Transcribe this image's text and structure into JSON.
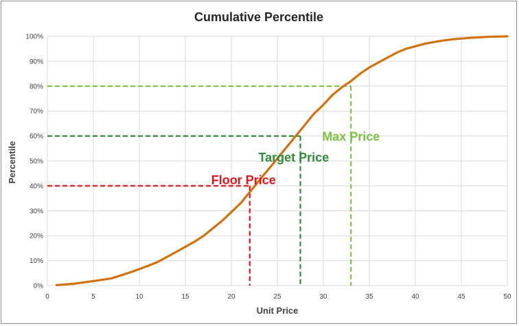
{
  "chart_data": {
    "type": "line",
    "title": "Cumulative Percentile",
    "xlabel": "Unit Price",
    "ylabel": "Percentile",
    "xlim": [
      0,
      50
    ],
    "ylim": [
      0,
      100
    ],
    "x_ticks": [
      "0",
      "5",
      "10",
      "15",
      "20",
      "25",
      "30",
      "35",
      "40",
      "45",
      "50"
    ],
    "y_ticks": [
      "0%",
      "10%",
      "20%",
      "30%",
      "40%",
      "50%",
      "60%",
      "70%",
      "80%",
      "90%",
      "100%"
    ],
    "grid": true,
    "series": [
      {
        "color": "#d4700a",
        "points": [
          [
            1,
            0.2
          ],
          [
            3,
            0.8
          ],
          [
            5,
            1.8
          ],
          [
            7,
            2.9
          ],
          [
            9,
            5.3
          ],
          [
            11,
            8
          ],
          [
            12,
            9.5
          ],
          [
            14,
            13.5
          ],
          [
            16,
            17.6
          ],
          [
            17,
            20
          ],
          [
            18,
            23
          ],
          [
            19,
            26
          ],
          [
            20,
            29.5
          ],
          [
            21,
            33
          ],
          [
            22,
            37.5
          ],
          [
            23,
            42
          ],
          [
            24,
            46.5
          ],
          [
            25,
            51
          ],
          [
            26,
            55.5
          ],
          [
            27,
            60
          ],
          [
            28,
            64.5
          ],
          [
            29,
            69
          ],
          [
            30,
            72.5
          ],
          [
            31,
            76.5
          ],
          [
            32,
            79.5
          ],
          [
            33,
            82
          ],
          [
            34,
            85
          ],
          [
            35,
            87.5
          ],
          [
            36,
            89.5
          ],
          [
            37,
            91.5
          ],
          [
            38,
            93.5
          ],
          [
            39,
            95
          ],
          [
            40,
            96
          ],
          [
            41,
            97
          ],
          [
            42,
            97.7
          ],
          [
            43,
            98.3
          ],
          [
            44,
            98.8
          ],
          [
            45,
            99.1
          ],
          [
            46,
            99.4
          ],
          [
            47,
            99.6
          ],
          [
            48,
            99.8
          ],
          [
            49,
            99.9
          ],
          [
            50,
            100
          ]
        ]
      }
    ],
    "annotations": [
      {
        "label": "Floor Price",
        "x": 22,
        "y": 40,
        "color": "#e8161c"
      },
      {
        "label": "Target Price",
        "x": 27.5,
        "y": 60,
        "color": "#2e8b38"
      },
      {
        "label": "Max Price",
        "x": 33,
        "y": 80,
        "color": "#7cc242"
      }
    ]
  }
}
